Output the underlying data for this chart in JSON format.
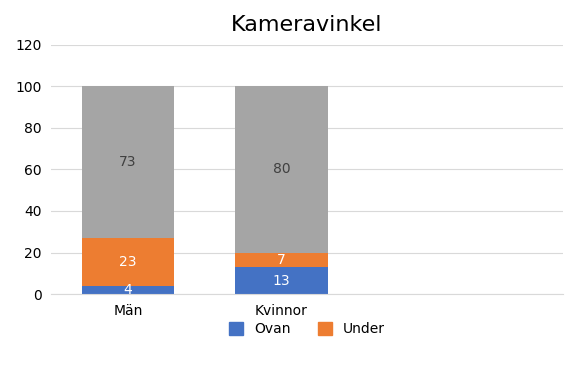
{
  "title": "Kameravinkel",
  "categories": [
    "Män",
    "Kvinnor"
  ],
  "ovan": [
    4,
    13
  ],
  "under": [
    23,
    7
  ],
  "neutral": [
    73,
    80
  ],
  "ovan_color": "#4472c4",
  "under_color": "#ed7d31",
  "neutral_color": "#a5a5a5",
  "bar_width": 0.18,
  "x_positions": [
    0.15,
    0.45
  ],
  "xlim": [
    0.0,
    1.0
  ],
  "ylim": [
    0,
    120
  ],
  "yticks": [
    0,
    20,
    40,
    60,
    80,
    100,
    120
  ],
  "legend_labels": [
    "Ovan",
    "Under"
  ],
  "title_fontsize": 16,
  "label_fontsize": 10,
  "tick_fontsize": 10
}
